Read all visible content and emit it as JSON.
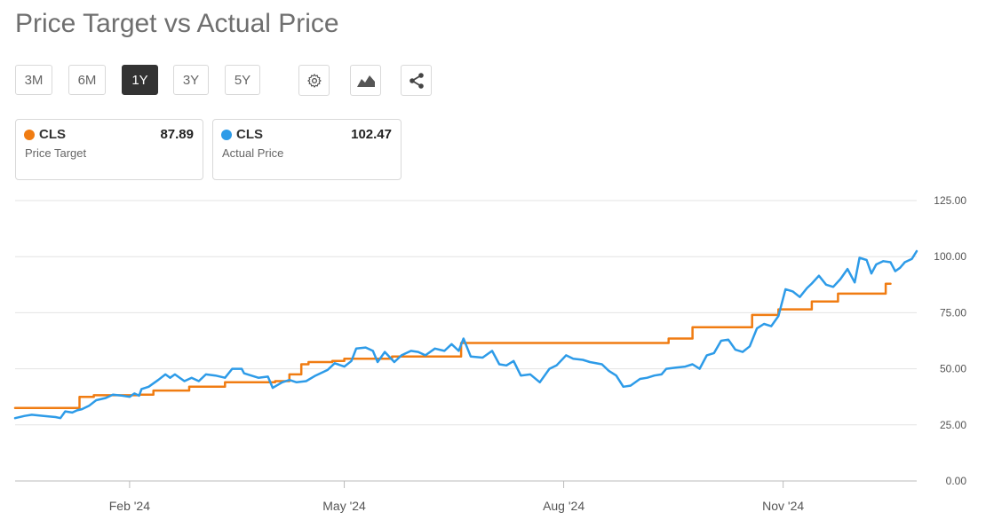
{
  "title": "Price Target vs Actual Price",
  "ranges": [
    "3M",
    "6M",
    "1Y",
    "3Y",
    "5Y"
  ],
  "active_range": "1Y",
  "icons": [
    "gear-icon",
    "chart-type-icon",
    "share-icon"
  ],
  "legend": [
    {
      "ticker": "CLS",
      "label": "Price Target",
      "value": "87.89",
      "color": "#f07c12"
    },
    {
      "ticker": "CLS",
      "label": "Actual Price",
      "value": "102.47",
      "color": "#2d9be8"
    }
  ],
  "chart_data": {
    "type": "line",
    "ylim": [
      0,
      125
    ],
    "yticks": [
      "125.00",
      "100.00",
      "75.00",
      "50.00",
      "25.00",
      "0.00"
    ],
    "xticks": [
      "Feb '24",
      "May '24",
      "Aug '24",
      "Nov '24"
    ],
    "grid": true,
    "legend_position": "top-left",
    "series": [
      {
        "name": "Price Target",
        "color": "#f07c12",
        "step": true,
        "points": [
          [
            "2023-12-15",
            32.5
          ],
          [
            "2024-01-11",
            37.5
          ],
          [
            "2024-01-17",
            38.2
          ],
          [
            "2024-02-05",
            38.5
          ],
          [
            "2024-02-11",
            40.3
          ],
          [
            "2024-02-26",
            42.0
          ],
          [
            "2024-03-12",
            44.0
          ],
          [
            "2024-04-02",
            44.5
          ],
          [
            "2024-04-08",
            47.5
          ],
          [
            "2024-04-13",
            52.0
          ],
          [
            "2024-04-16",
            53.0
          ],
          [
            "2024-04-26",
            53.5
          ],
          [
            "2024-05-01",
            54.5
          ],
          [
            "2024-05-21",
            55.5
          ],
          [
            "2024-06-19",
            61.5
          ],
          [
            "2024-09-14",
            63.5
          ],
          [
            "2024-09-24",
            68.5
          ],
          [
            "2024-10-19",
            74.0
          ],
          [
            "2024-10-30",
            76.5
          ],
          [
            "2024-11-13",
            80.0
          ],
          [
            "2024-11-24",
            83.5
          ],
          [
            "2024-12-14",
            87.89
          ],
          [
            "2024-12-16",
            87.89
          ]
        ]
      },
      {
        "name": "Actual Price",
        "color": "#2d9be8",
        "step": false,
        "points": [
          [
            "2023-12-15",
            28.0
          ],
          [
            "2023-12-19",
            29.0
          ],
          [
            "2023-12-22",
            29.5
          ],
          [
            "2023-12-27",
            29.0
          ],
          [
            "2024-01-01",
            28.5
          ],
          [
            "2024-01-03",
            28.0
          ],
          [
            "2024-01-05",
            31.0
          ],
          [
            "2024-01-08",
            30.5
          ],
          [
            "2024-01-10",
            31.5
          ],
          [
            "2024-01-12",
            32.0
          ],
          [
            "2024-01-15",
            33.5
          ],
          [
            "2024-01-18",
            36.0
          ],
          [
            "2024-01-22",
            37.0
          ],
          [
            "2024-01-25",
            38.5
          ],
          [
            "2024-01-29",
            38.0
          ],
          [
            "2024-02-01",
            37.5
          ],
          [
            "2024-02-03",
            39.0
          ],
          [
            "2024-02-05",
            38.0
          ],
          [
            "2024-02-06",
            41.0
          ],
          [
            "2024-02-09",
            42.0
          ],
          [
            "2024-02-13",
            45.0
          ],
          [
            "2024-02-16",
            47.5
          ],
          [
            "2024-02-18",
            46.0
          ],
          [
            "2024-02-20",
            47.5
          ],
          [
            "2024-02-24",
            44.5
          ],
          [
            "2024-02-27",
            46.0
          ],
          [
            "2024-03-01",
            44.5
          ],
          [
            "2024-03-04",
            47.5
          ],
          [
            "2024-03-08",
            47.0
          ],
          [
            "2024-03-12",
            46.0
          ],
          [
            "2024-03-15",
            50.0
          ],
          [
            "2024-03-19",
            50.0
          ],
          [
            "2024-03-20",
            48.0
          ],
          [
            "2024-03-23",
            47.0
          ],
          [
            "2024-03-26",
            46.0
          ],
          [
            "2024-03-30",
            46.5
          ],
          [
            "2024-04-01",
            41.5
          ],
          [
            "2024-04-05",
            44.0
          ],
          [
            "2024-04-08",
            45.0
          ],
          [
            "2024-04-11",
            44.0
          ],
          [
            "2024-04-15",
            44.5
          ],
          [
            "2024-04-19",
            47.0
          ],
          [
            "2024-04-24",
            49.5
          ],
          [
            "2024-04-27",
            52.5
          ],
          [
            "2024-05-01",
            51.0
          ],
          [
            "2024-05-04",
            53.5
          ],
          [
            "2024-05-06",
            59.0
          ],
          [
            "2024-05-10",
            59.5
          ],
          [
            "2024-05-13",
            58.0
          ],
          [
            "2024-05-15",
            53.0
          ],
          [
            "2024-05-18",
            57.5
          ],
          [
            "2024-05-22",
            53.0
          ],
          [
            "2024-05-25",
            56.0
          ],
          [
            "2024-05-29",
            58.0
          ],
          [
            "2024-06-01",
            57.5
          ],
          [
            "2024-06-04",
            56.0
          ],
          [
            "2024-06-08",
            59.0
          ],
          [
            "2024-06-12",
            58.0
          ],
          [
            "2024-06-15",
            61.0
          ],
          [
            "2024-06-18",
            58.0
          ],
          [
            "2024-06-20",
            63.5
          ],
          [
            "2024-06-23",
            55.5
          ],
          [
            "2024-06-28",
            55.0
          ],
          [
            "2024-07-02",
            58.0
          ],
          [
            "2024-07-05",
            52.0
          ],
          [
            "2024-07-08",
            51.5
          ],
          [
            "2024-07-11",
            53.5
          ],
          [
            "2024-07-14",
            47.0
          ],
          [
            "2024-07-18",
            47.5
          ],
          [
            "2024-07-22",
            44.0
          ],
          [
            "2024-07-26",
            50.0
          ],
          [
            "2024-07-29",
            51.5
          ],
          [
            "2024-08-02",
            56.0
          ],
          [
            "2024-08-05",
            54.5
          ],
          [
            "2024-08-09",
            54.0
          ],
          [
            "2024-08-12",
            53.0
          ],
          [
            "2024-08-17",
            52.0
          ],
          [
            "2024-08-20",
            49.0
          ],
          [
            "2024-08-23",
            47.0
          ],
          [
            "2024-08-26",
            42.0
          ],
          [
            "2024-08-29",
            42.5
          ],
          [
            "2024-09-02",
            45.5
          ],
          [
            "2024-09-05",
            46.0
          ],
          [
            "2024-09-08",
            47.0
          ],
          [
            "2024-09-11",
            47.5
          ],
          [
            "2024-09-13",
            50.0
          ],
          [
            "2024-09-17",
            50.5
          ],
          [
            "2024-09-21",
            51.0
          ],
          [
            "2024-09-24",
            52.0
          ],
          [
            "2024-09-27",
            50.0
          ],
          [
            "2024-09-30",
            56.0
          ],
          [
            "2024-10-03",
            57.0
          ],
          [
            "2024-10-06",
            62.5
          ],
          [
            "2024-10-09",
            63.0
          ],
          [
            "2024-10-12",
            58.5
          ],
          [
            "2024-10-15",
            57.5
          ],
          [
            "2024-10-18",
            60.0
          ],
          [
            "2024-10-21",
            68.0
          ],
          [
            "2024-10-24",
            70.0
          ],
          [
            "2024-10-27",
            69.0
          ],
          [
            "2024-10-30",
            73.5
          ],
          [
            "2024-11-02",
            85.5
          ],
          [
            "2024-11-05",
            84.5
          ],
          [
            "2024-11-08",
            82.0
          ],
          [
            "2024-11-11",
            86.0
          ],
          [
            "2024-11-13",
            88.0
          ],
          [
            "2024-11-16",
            91.5
          ],
          [
            "2024-11-19",
            87.5
          ],
          [
            "2024-11-22",
            86.5
          ],
          [
            "2024-11-25",
            90.0
          ],
          [
            "2024-11-28",
            94.5
          ],
          [
            "2024-12-01",
            88.5
          ],
          [
            "2024-12-03",
            99.5
          ],
          [
            "2024-12-06",
            98.5
          ],
          [
            "2024-12-08",
            92.5
          ],
          [
            "2024-12-10",
            96.5
          ],
          [
            "2024-12-13",
            98.0
          ],
          [
            "2024-12-16",
            97.5
          ],
          [
            "2024-12-18",
            93.5
          ],
          [
            "2024-12-20",
            95.0
          ],
          [
            "2024-12-22",
            97.5
          ],
          [
            "2024-12-25",
            99.0
          ],
          [
            "2024-12-27",
            102.47
          ]
        ]
      }
    ]
  }
}
